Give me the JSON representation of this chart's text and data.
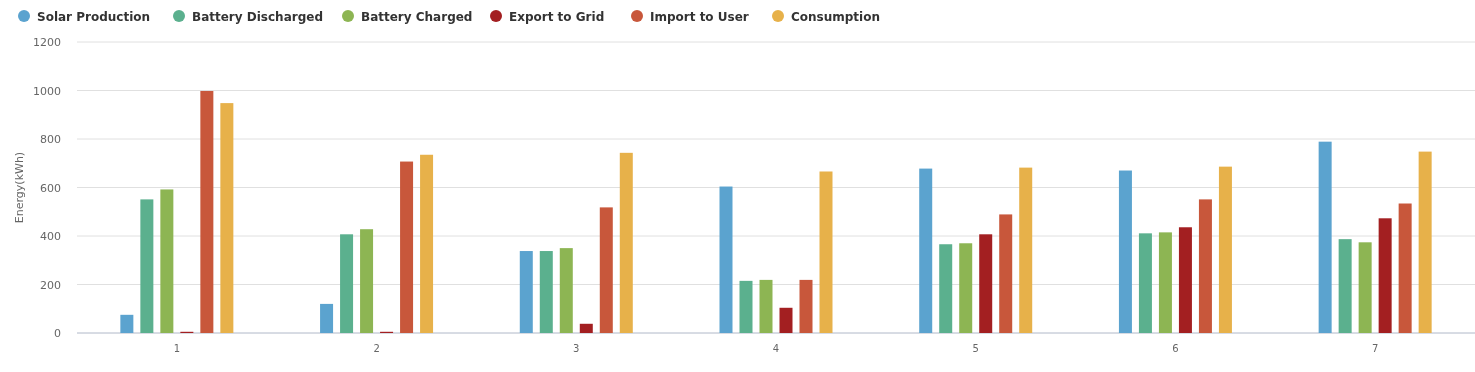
{
  "chart_data": {
    "type": "bar",
    "ylabel": "Energy(kWh)",
    "categories": [
      "1",
      "2",
      "3",
      "4",
      "5",
      "6",
      "7"
    ],
    "series": [
      {
        "name": "Solar Production",
        "color": "#5ba3cf",
        "values": [
          75,
          120,
          338,
          604,
          678,
          670,
          789
        ]
      },
      {
        "name": "Battery Discharged",
        "color": "#5bb08e",
        "values": [
          551,
          407,
          338,
          215,
          366,
          411,
          387
        ]
      },
      {
        "name": "Battery Charged",
        "color": "#8db553",
        "values": [
          592,
          428,
          350,
          219,
          370,
          415,
          374
        ]
      },
      {
        "name": "Export to Grid",
        "color": "#a31f21",
        "values": [
          5,
          5,
          38,
          104,
          407,
          436,
          473
        ]
      },
      {
        "name": "Import to User",
        "color": "#c8573b",
        "values": [
          998,
          707,
          518,
          219,
          489,
          551,
          534
        ]
      },
      {
        "name": "Consumption",
        "color": "#e7b14a",
        "values": [
          948,
          735,
          743,
          666,
          682,
          686,
          748
        ]
      }
    ],
    "ylim": [
      0,
      1200
    ],
    "yticks": [
      0,
      200,
      400,
      600,
      800,
      1000,
      1200
    ],
    "grid": "y",
    "legend": "top left"
  }
}
